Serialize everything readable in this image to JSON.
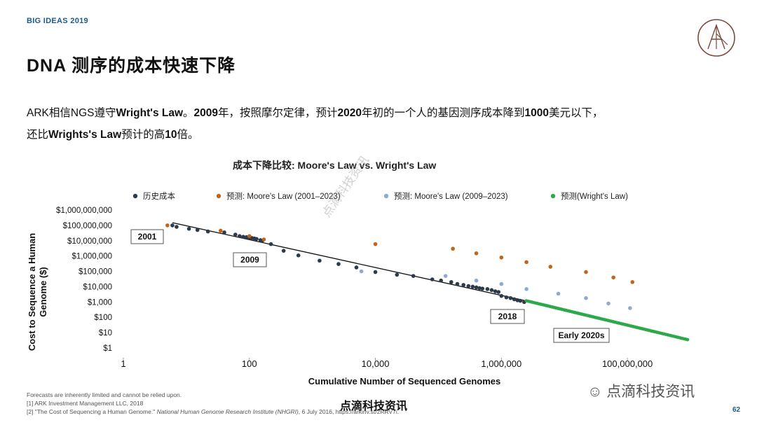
{
  "header": {
    "brand": "BIG IDEAS 2019",
    "title": "DNA 测序的成本快速下降",
    "page_number": "62"
  },
  "intro": {
    "line1_a": "ARK相信NGS遵守",
    "line1_b": "Wright's Law",
    "line1_c": "。",
    "line1_d": "2009",
    "line1_e": "年，按照摩尔定律，预计",
    "line1_f": "2020",
    "line1_g": "年初的一个人的基因测序成本降到",
    "line1_h": "1000",
    "line1_i": "美元以下，",
    "line2_a": "还比",
    "line2_b": "Wrights's Law",
    "line2_c": "预计的高",
    "line2_d": "10",
    "line2_e": "倍。"
  },
  "notes": {
    "line1": "Forecasts are inherently limited and cannot be relied upon.",
    "line2": "[1] ARK Investment Management LLC, 2018",
    "line3_a": "[2] \"The Cost of Sequencing a Human Genome.\" ",
    "line3_b": "National Human Genome Research Institute (NHGRI)",
    "line3_c": ", 6 July 2016, https://arkinv.st/2RRV7i."
  },
  "watermarks": {
    "bottom": "点滴科技资讯",
    "right": "点滴科技资讯",
    "diagonal": "点滴科技资讯"
  },
  "colors": {
    "historical": "#2d3a4a",
    "moore_2001": "#c0651a",
    "moore_2009": "#8eaad4",
    "wright": "#2da84a",
    "trend": "#111111",
    "brand": "#1b5a8c"
  },
  "chart_data": {
    "type": "scatter",
    "title": "成本下降比较: Moore's Law vs. Wright's Law",
    "xlabel": "Cumulative Number of Sequenced Genomes",
    "ylabel": "Cost to Sequence a Human Genome ($)",
    "x_scale": "log",
    "y_scale": "log",
    "xlim": [
      1,
      1000000000
    ],
    "ylim": [
      1,
      1000000000
    ],
    "x_ticks": [
      {
        "value": 1,
        "label": "1"
      },
      {
        "value": 100,
        "label": "100"
      },
      {
        "value": 10000,
        "label": "10,000"
      },
      {
        "value": 1000000,
        "label": "1,000,000"
      },
      {
        "value": 100000000,
        "label": "100,000,000"
      }
    ],
    "y_ticks": [
      {
        "value": 1,
        "label": "$1"
      },
      {
        "value": 10,
        "label": "$10"
      },
      {
        "value": 100,
        "label": "$100"
      },
      {
        "value": 1000,
        "label": "$1,000"
      },
      {
        "value": 10000,
        "label": "$10,000"
      },
      {
        "value": 100000,
        "label": "$100,000"
      },
      {
        "value": 1000000,
        "label": "$1,000,000"
      },
      {
        "value": 10000000,
        "label": "$10,000,000"
      },
      {
        "value": 100000000,
        "label": "$100,000,000"
      },
      {
        "value": 1000000000,
        "label": "$1,000,000,000"
      }
    ],
    "legend": [
      "历史成本",
      "预测: Moore's Law (2001–2023)",
      "预测: Moore's Law (2009–2023)",
      "预测(Wright's Law)"
    ],
    "legend_position": "top",
    "annotations": [
      {
        "text": "2001",
        "x": 3,
        "y": 25000000
      },
      {
        "text": "2009",
        "x": 50,
        "y": 400000
      },
      {
        "text": "2018",
        "x": 1000000,
        "y": 150
      },
      {
        "text": "Early 2020s",
        "x": 50000000,
        "y": 10
      }
    ],
    "trend_line": {
      "name": "Wright's Law fit",
      "x": [
        6,
        3000000
      ],
      "y": [
        150000000,
        1000
      ]
    },
    "series": [
      {
        "name": "历史成本",
        "x": [
          6,
          7,
          11,
          15,
          22,
          40,
          60,
          70,
          80,
          90,
          100,
          110,
          120,
          130,
          150,
          160,
          220,
          350,
          600,
          1300,
          2600,
          5000,
          10000,
          22000,
          40000,
          80000,
          110000,
          160000,
          200000,
          250000,
          300000,
          350000,
          400000,
          450000,
          500000,
          600000,
          700000,
          800000,
          900000,
          1000000,
          1200000,
          1400000,
          1600000,
          1800000,
          2000000,
          2300000
        ],
        "y": [
          100000000,
          80000000,
          60000000,
          50000000,
          40000000,
          35000000,
          25000000,
          20000000,
          18000000,
          17000000,
          16000000,
          15000000,
          14000000,
          13000000,
          11000000,
          10000000,
          6000000,
          2200000,
          1100000,
          500000,
          300000,
          180000,
          90000,
          60000,
          50000,
          30000,
          25000,
          20000,
          15000,
          13000,
          11000,
          10000,
          9000,
          8000,
          7500,
          7000,
          6000,
          5000,
          4500,
          2500,
          2000,
          1800,
          1500,
          1300,
          1200,
          1000
        ]
      },
      {
        "name": "预测: Moore's Law (2001–2023)",
        "x": [
          5,
          35,
          100,
          170,
          10000,
          170000,
          400000,
          1000000,
          2500000,
          6000000,
          22000000,
          60000000,
          120000000
        ],
        "y": [
          100000000,
          45000000,
          20000000,
          12000000,
          6000000,
          3000000,
          1500000,
          800000,
          400000,
          200000,
          90000,
          40000,
          20000
        ]
      },
      {
        "name": "预测: Moore's Law (2009–2023)",
        "x": [
          6000,
          130000,
          400000,
          1000000,
          2500000,
          8000000,
          22000000,
          50000000,
          110000000
        ],
        "y": [
          100000,
          50000,
          25000,
          15000,
          7000,
          3500,
          1800,
          800,
          400
        ]
      },
      {
        "name": "预测(Wright's Law)",
        "x_range": [
          2500000,
          900000000
        ],
        "y_range": [
          1200,
          3.5
        ],
        "points": 90
      }
    ]
  }
}
